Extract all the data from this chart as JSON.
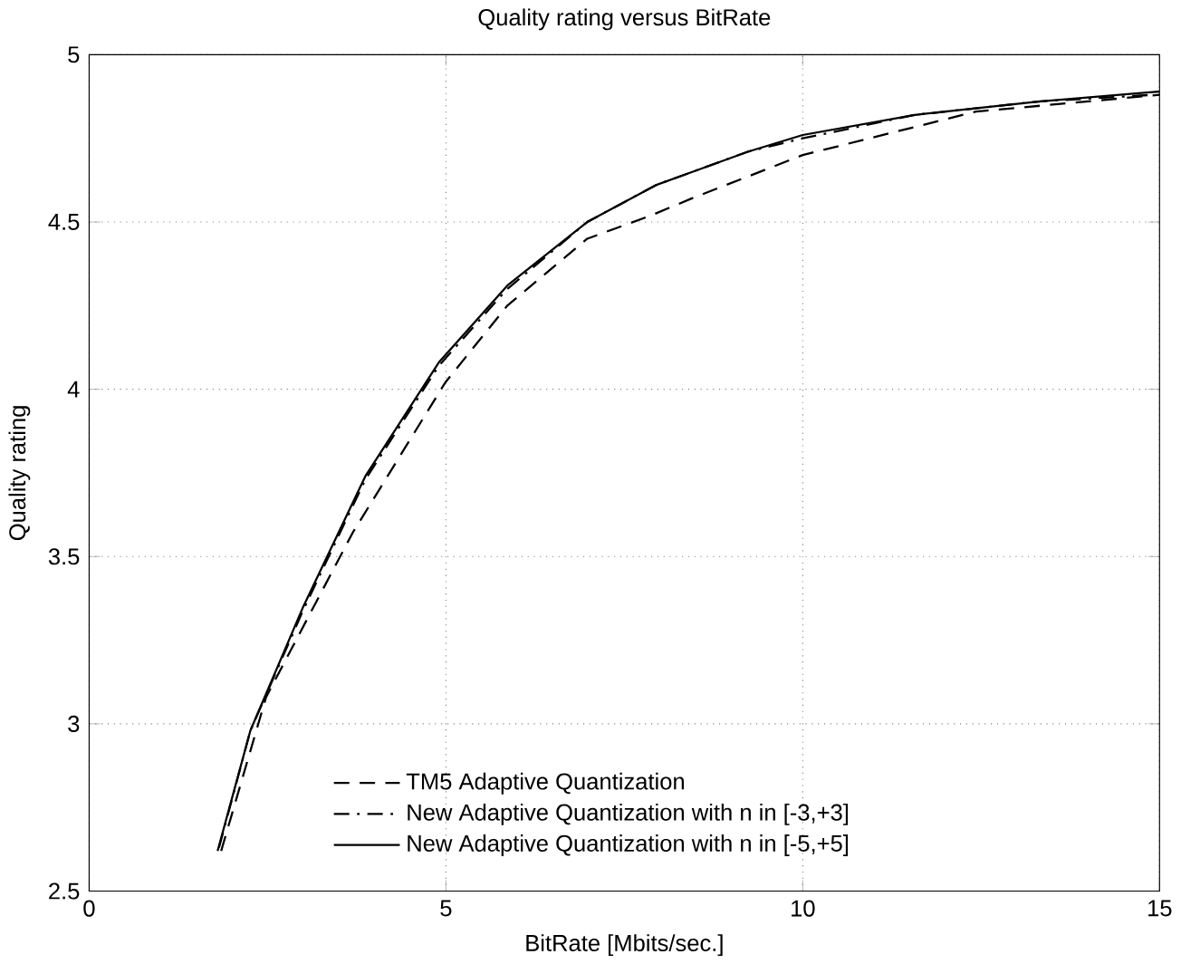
{
  "chart_data": {
    "type": "line",
    "title": "Quality rating versus BitRate",
    "xlabel": "BitRate [Mbits/sec.]",
    "ylabel": "Quality rating",
    "xlim": [
      0,
      15
    ],
    "ylim": [
      2.5,
      5
    ],
    "xticks": [
      0,
      5,
      10,
      15
    ],
    "yticks": [
      2.5,
      3,
      3.5,
      4,
      4.5,
      5
    ],
    "grid": true,
    "legend": "bottom",
    "series": [
      {
        "name": "TM5 Adaptive Quantization",
        "color": "#000000",
        "line_style": "dashed",
        "x": [
          1.85,
          2.48,
          3.69,
          4.99,
          5.86,
          6.98,
          7.88,
          8.44,
          10,
          12.43,
          15
        ],
        "values": [
          2.62,
          3.08,
          3.57,
          4.02,
          4.25,
          4.45,
          4.52,
          4.57,
          4.7,
          4.83,
          4.88
        ]
      },
      {
        "name": "New Adaptive Quantization with n in [-3,+3]",
        "color": "#000000",
        "line_style": "dashdot",
        "x": [
          1.82,
          2.26,
          3.0,
          3.87,
          4.9,
          5.86,
          6.98,
          7.94,
          9.23,
          10,
          11.57,
          13.3,
          14.9
        ],
        "values": [
          2.63,
          2.98,
          3.34,
          3.73,
          4.07,
          4.3,
          4.5,
          4.61,
          4.71,
          4.75,
          4.82,
          4.86,
          4.88
        ]
      },
      {
        "name": "New Adaptive Quantization with n in [-5,+5]",
        "color": "#000000",
        "line_style": "solid",
        "x": [
          1.8,
          2.26,
          3.0,
          3.87,
          4.9,
          5.86,
          6.98,
          7.94,
          9.23,
          10,
          11.57,
          13.3,
          15
        ],
        "values": [
          2.62,
          2.98,
          3.35,
          3.74,
          4.08,
          4.31,
          4.5,
          4.61,
          4.71,
          4.76,
          4.82,
          4.86,
          4.89
        ]
      }
    ]
  }
}
